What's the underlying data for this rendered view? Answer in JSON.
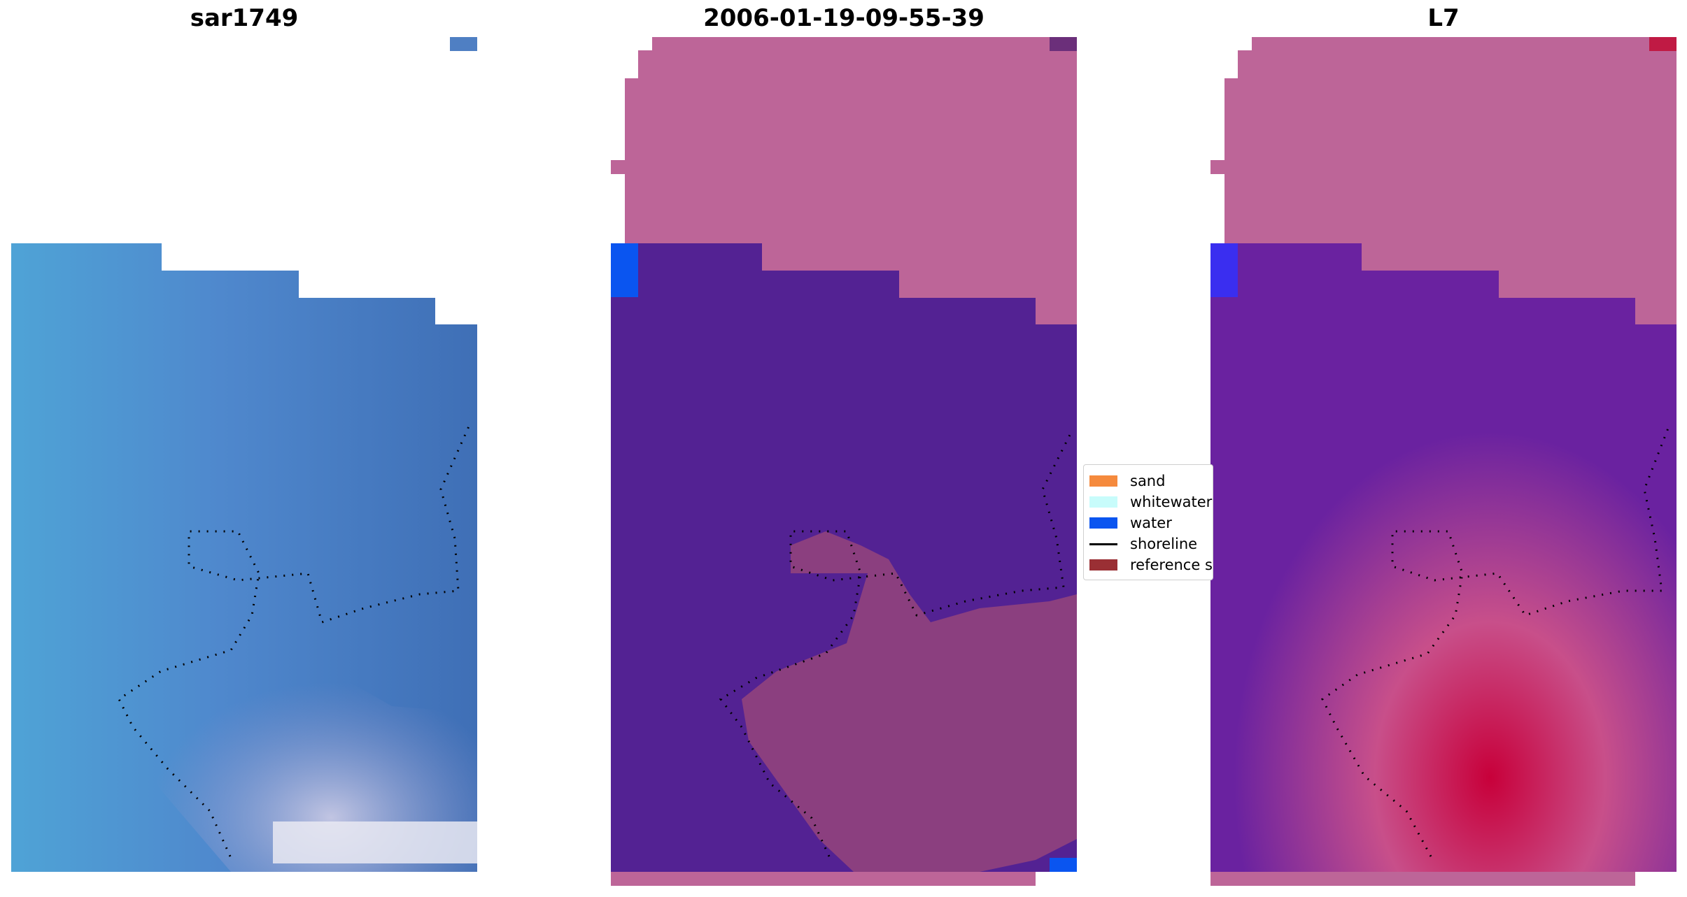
{
  "panels": [
    {
      "title": "sar1749"
    },
    {
      "title": "2006-01-19-09-55-39"
    },
    {
      "title": "L7"
    }
  ],
  "legend": {
    "items": [
      {
        "label": "sand",
        "color": "#f58a3d",
        "kind": "patch",
        "icon": "sand-swatch"
      },
      {
        "label": "whitewater",
        "color": "#c8fcfb",
        "kind": "patch",
        "icon": "whitewater-swatch"
      },
      {
        "label": "water",
        "color": "#0a55f0",
        "kind": "patch",
        "icon": "water-swatch"
      },
      {
        "label": "shoreline",
        "color": "#000000",
        "kind": "line",
        "icon": "shoreline-line"
      },
      {
        "label": "reference s",
        "color": "#9a2f34",
        "kind": "patch",
        "icon": "reference-swatch"
      }
    ]
  },
  "colors": {
    "land_pink": "#bd6598",
    "ocean_purple": "#532293",
    "blue_rgb": "#4f82c9"
  }
}
